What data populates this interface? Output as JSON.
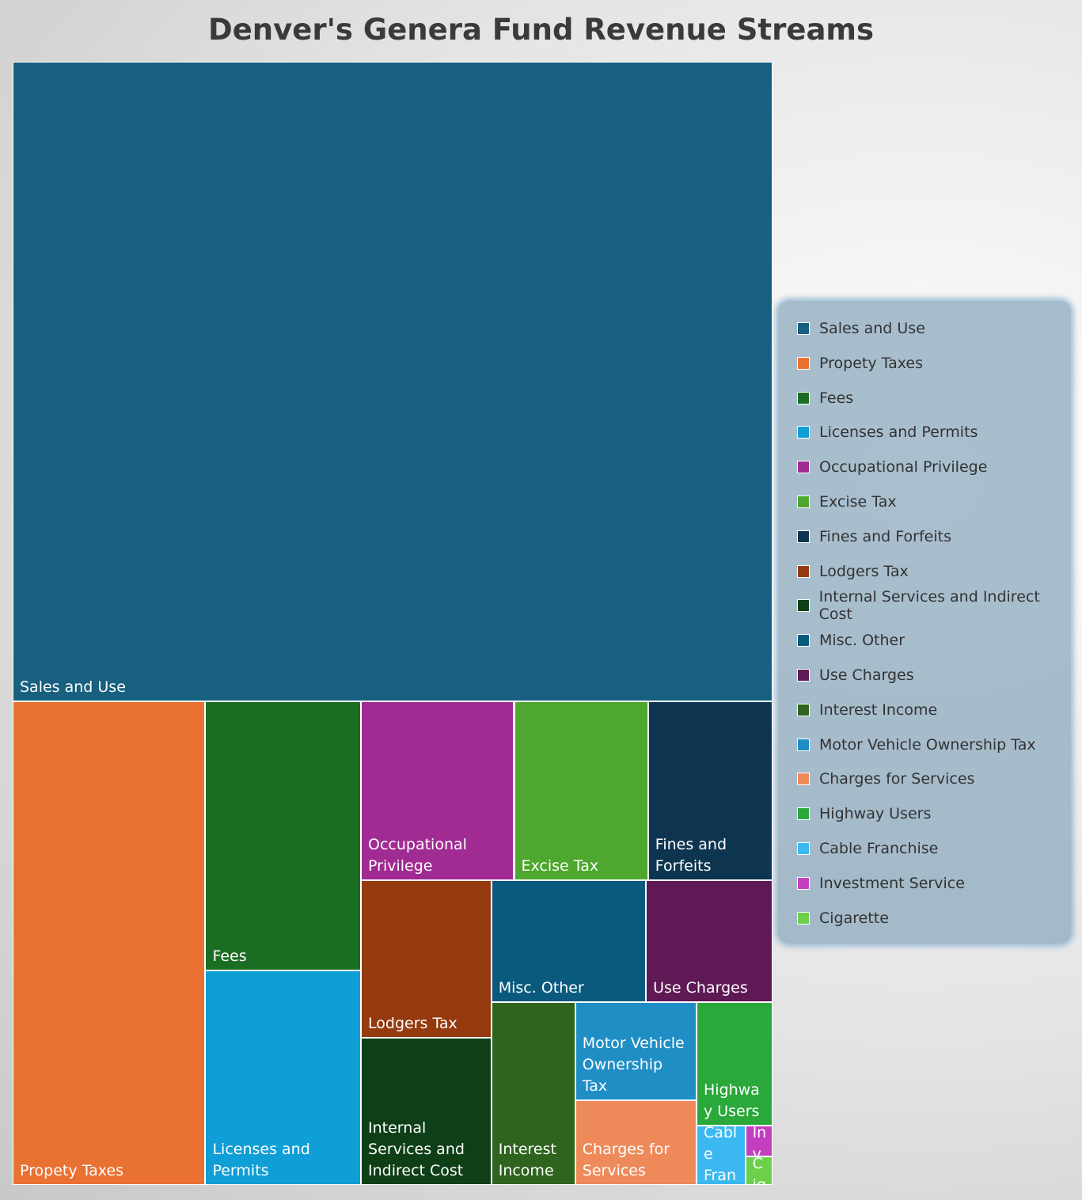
{
  "chart_data": {
    "type": "treemap",
    "title": "Denver's Genera Fund Revenue Streams",
    "categories": [
      "Sales and Use",
      "Propety Taxes",
      "Fees",
      "Licenses and Permits",
      "Occupational Privilege",
      "Excise Tax",
      "Fines and Forfeits",
      "Lodgers Tax",
      "Internal Services and Indirect Cost",
      "Misc. Other",
      "Use Charges",
      "Interest Income",
      "Motor Vehicle Ownership Tax",
      "Charges for Services",
      "Highway Users",
      "Cable Franchise",
      "Investment Service",
      "Cigarette"
    ],
    "values": [
      56.9,
      10.9,
      4.9,
      3.9,
      3.2,
      2.8,
      2.6,
      2.4,
      2.25,
      2.2,
      1.8,
      1.8,
      1.4,
      1.2,
      1.1,
      0.34,
      0.1,
      0.09
    ],
    "colors": [
      "#17607f",
      "#e97132",
      "#1b6d24",
      "#0f9ed5",
      "#a02b93",
      "#4ea72e",
      "#0e354f",
      "#953a0f",
      "#0e3f16",
      "#0a5a7e",
      "#5f1955",
      "#2f641e",
      "#1f8ec5",
      "#ee8a5a",
      "#2aa83a",
      "#3ab8ef",
      "#c43fc0",
      "#6cd04a"
    ],
    "legend": "right"
  }
}
